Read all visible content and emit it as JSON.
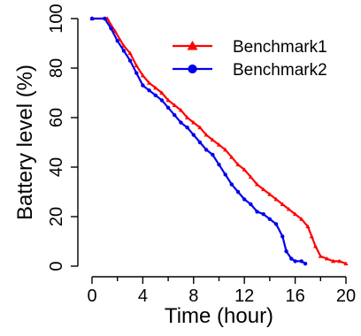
{
  "chart_data": {
    "type": "line",
    "title": "",
    "xlabel": "Time (hour)",
    "ylabel": "Battery level (%)",
    "xlim": [
      0,
      20
    ],
    "ylim": [
      0,
      100
    ],
    "xticks": [
      0,
      4,
      8,
      12,
      16,
      20
    ],
    "xminor_ticks": [
      2,
      6,
      10,
      14,
      18
    ],
    "yticks": [
      0,
      20,
      40,
      60,
      80,
      100
    ],
    "grid": false,
    "legend_position": "top-right",
    "series": [
      {
        "name": "Benchmark1",
        "color": "#ff0000",
        "marker": "triangle",
        "x": [
          0,
          1.2,
          1.8,
          2.5,
          3.0,
          3.5,
          4.0,
          4.5,
          5.0,
          5.5,
          6.0,
          6.5,
          7.0,
          7.5,
          8.0,
          8.5,
          9.0,
          9.5,
          10.0,
          10.5,
          11.0,
          11.5,
          12.0,
          12.5,
          13.0,
          13.5,
          14.0,
          14.5,
          15.0,
          15.5,
          16.0,
          16.5,
          17.0,
          17.3,
          17.6,
          18.0,
          18.5,
          19.0,
          19.5,
          20.0
        ],
        "y": [
          100,
          100,
          95,
          89,
          86,
          81,
          77,
          74,
          72,
          70,
          67,
          65,
          63,
          60,
          58,
          56,
          53,
          51,
          49,
          47,
          44,
          41,
          39,
          36,
          33,
          31,
          29,
          27,
          25,
          23,
          21,
          19,
          16,
          12,
          8,
          4,
          3,
          2,
          2,
          1
        ]
      },
      {
        "name": "Benchmark2",
        "color": "#0000ee",
        "marker": "circle",
        "x": [
          0,
          1.0,
          1.5,
          2.0,
          2.5,
          3.0,
          3.5,
          4.0,
          4.5,
          5.0,
          5.5,
          6.0,
          6.5,
          7.0,
          7.5,
          8.0,
          8.5,
          9.0,
          9.5,
          10.0,
          10.5,
          11.0,
          11.5,
          12.0,
          12.5,
          13.0,
          13.5,
          14.0,
          14.5,
          15.0,
          15.3,
          15.7,
          16.0,
          16.5,
          16.8
        ],
        "y": [
          100,
          100,
          96,
          91,
          87,
          83,
          78,
          73,
          71,
          69,
          67,
          64,
          61,
          58,
          56,
          53,
          50,
          47,
          45,
          41,
          37,
          33,
          30,
          27,
          25,
          22,
          21,
          19,
          17,
          12,
          6,
          3,
          2,
          2,
          1
        ]
      }
    ]
  }
}
